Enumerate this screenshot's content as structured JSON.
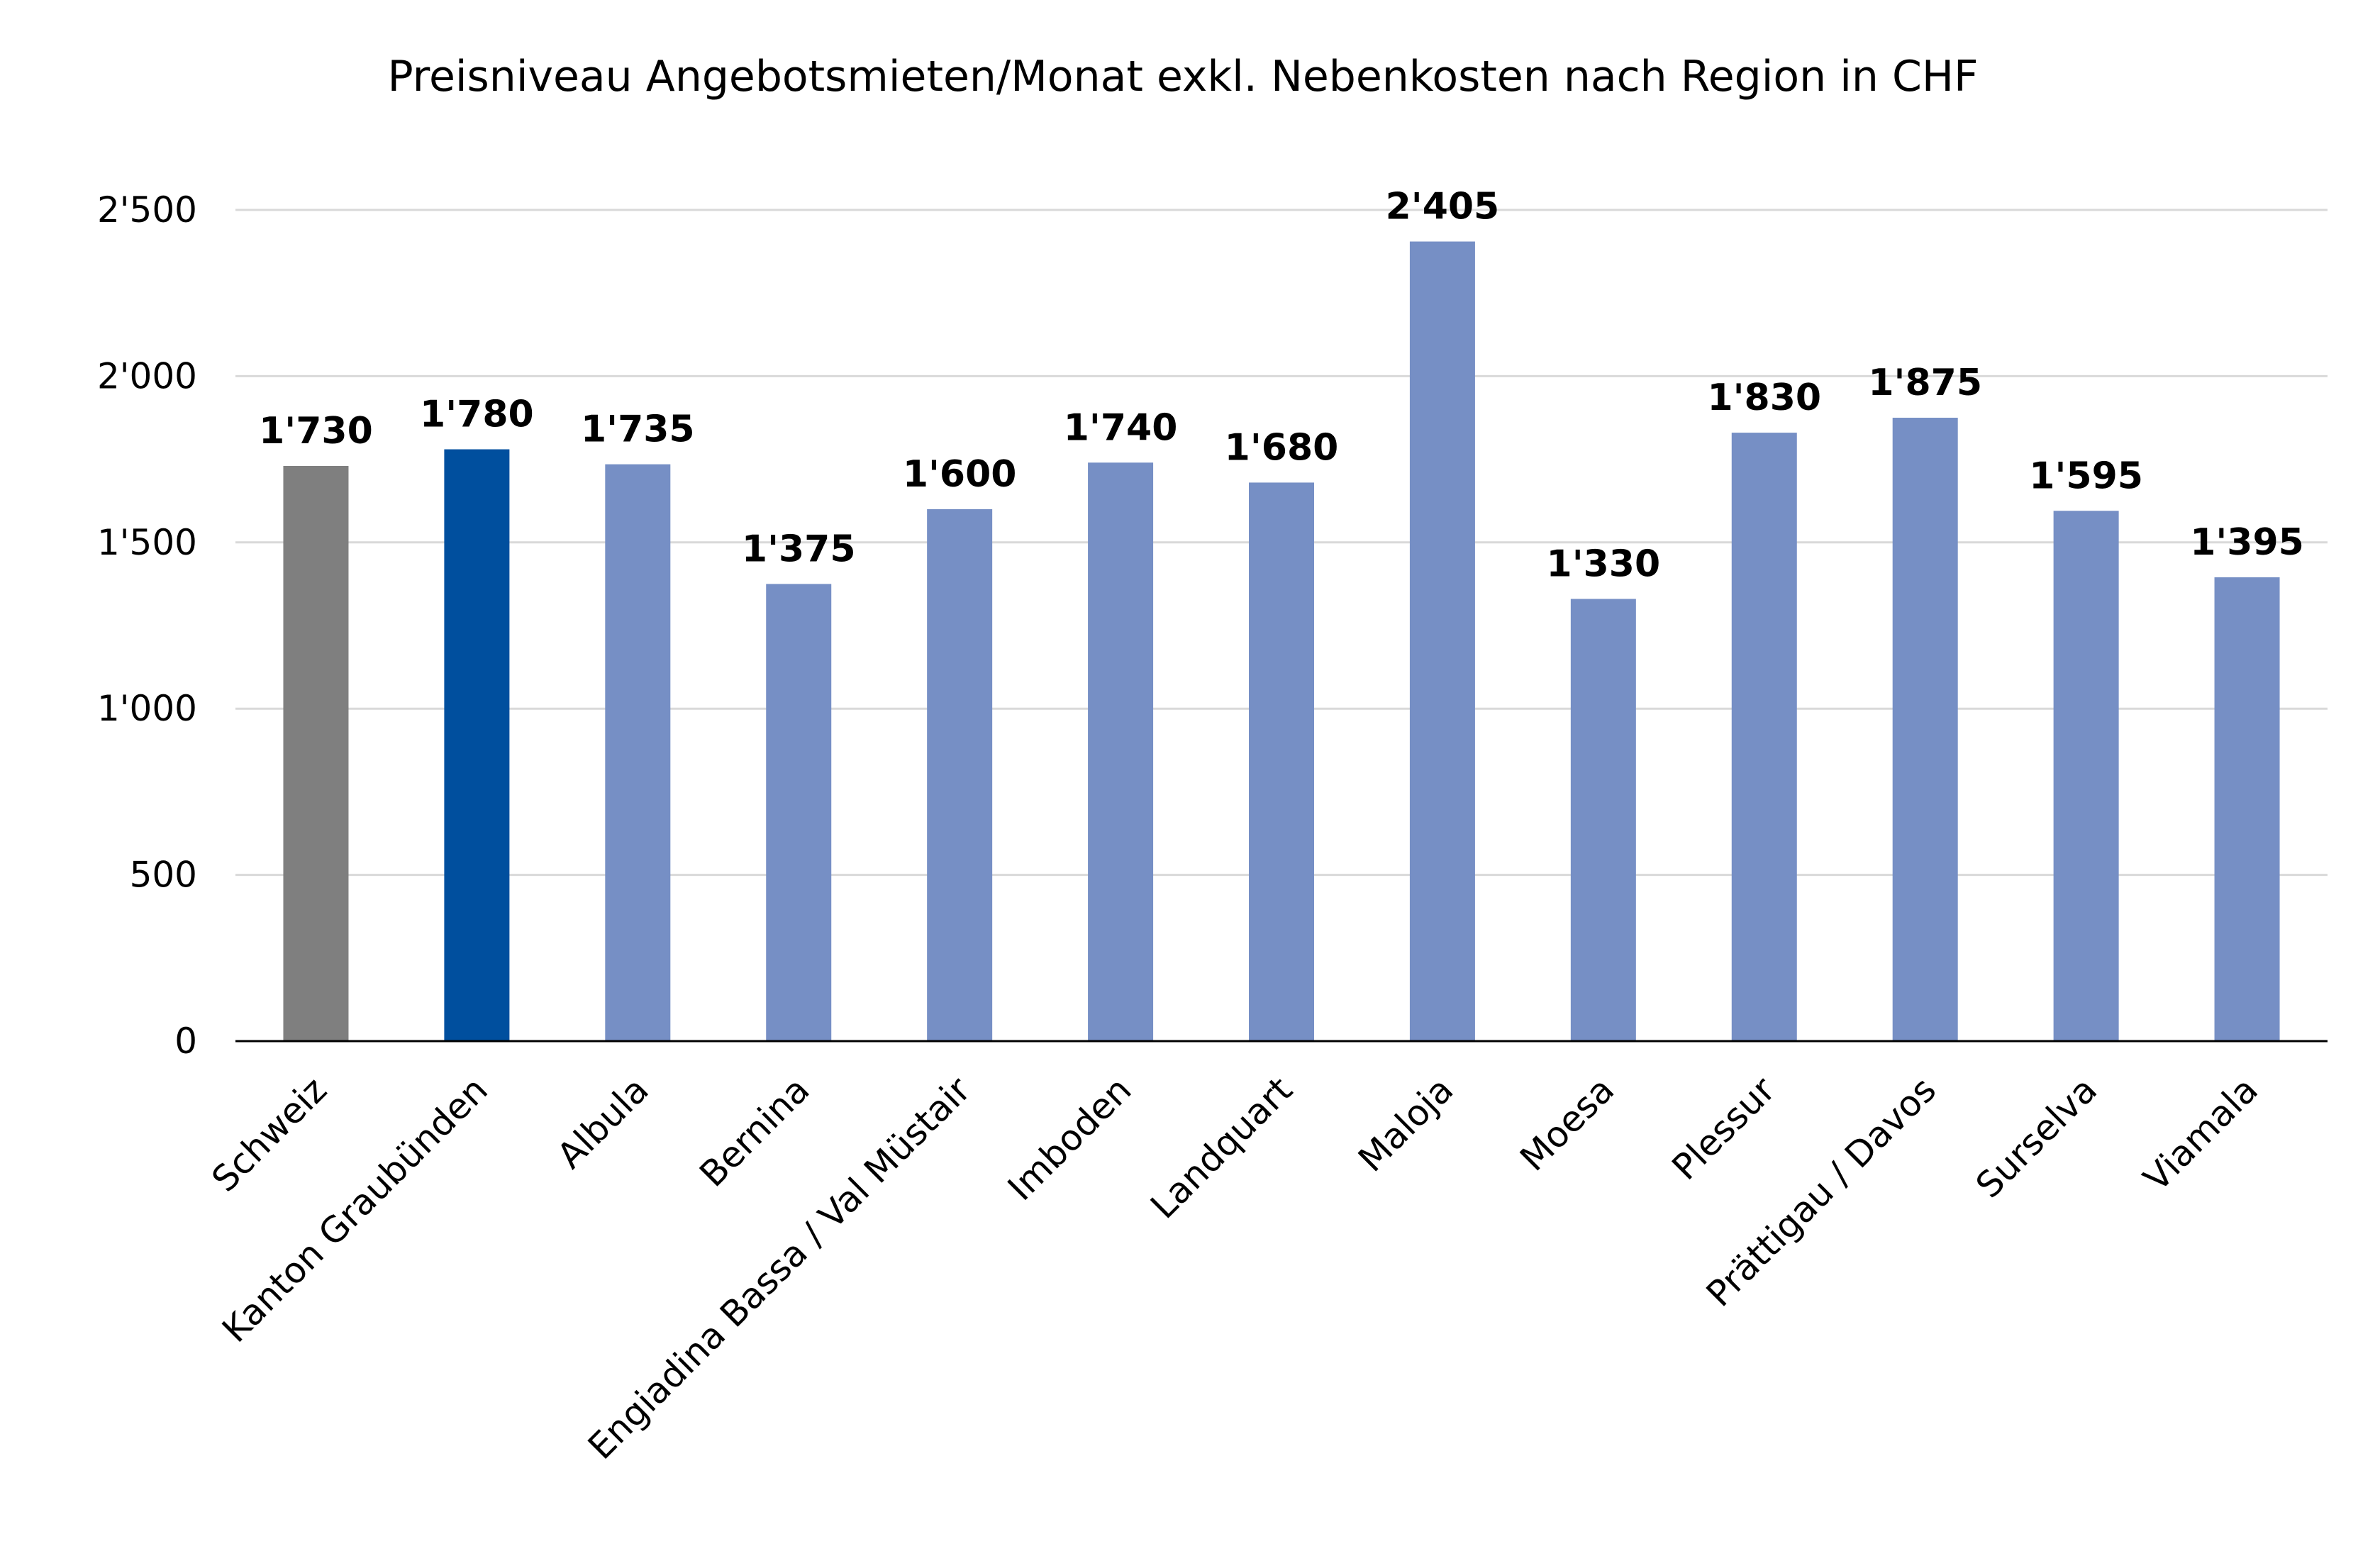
{
  "chart_data": {
    "type": "bar",
    "title": "Preisniveau Angebotsmieten/Monat exkl. Nebenkosten nach Region in CHF",
    "xlabel": "",
    "ylabel": "",
    "ylim": [
      0,
      2500
    ],
    "yticks": [
      0,
      500,
      1000,
      1500,
      2000,
      2500
    ],
    "ytick_labels": [
      "0",
      "500",
      "1'000",
      "1'500",
      "2'000",
      "2'500"
    ],
    "grid": true,
    "legend": "none",
    "categories": [
      "Schweiz",
      "Kanton Graubünden",
      "Albula",
      "Bernina",
      "Engiadina Bassa / Val Müstair",
      "Imboden",
      "Landquart",
      "Maloja",
      "Moesa",
      "Plessur",
      "Prättigau / Davos",
      "Surselva",
      "Viamala"
    ],
    "values": [
      1730,
      1780,
      1735,
      1375,
      1600,
      1740,
      1680,
      2405,
      1330,
      1830,
      1875,
      1595,
      1395
    ],
    "value_labels": [
      "1'730",
      "1'780",
      "1'735",
      "1'375",
      "1'600",
      "1'740",
      "1'680",
      "2'405",
      "1'330",
      "1'830",
      "1'875",
      "1'595",
      "1'395"
    ],
    "colors": [
      "#7f7f7f",
      "#004f9e",
      "#768fc5",
      "#768fc5",
      "#768fc5",
      "#768fc5",
      "#768fc5",
      "#768fc5",
      "#768fc5",
      "#768fc5",
      "#768fc5",
      "#768fc5",
      "#768fc5"
    ]
  }
}
